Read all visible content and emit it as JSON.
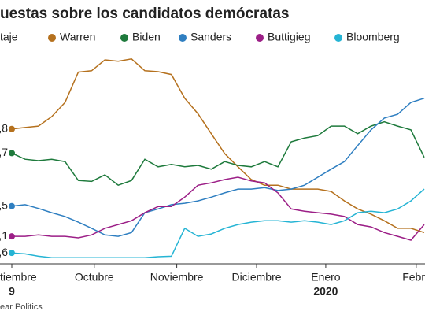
{
  "chart_data": {
    "type": "line",
    "title": "uestas sobre los candidatos demócratas",
    "legend_title": "taje",
    "source": "ear Politics",
    "year_labels": [
      "9",
      "2020"
    ],
    "x": [
      0,
      5,
      10,
      15,
      20,
      25,
      30,
      35,
      40,
      45,
      50,
      55,
      60,
      65,
      70,
      75,
      80,
      85,
      90,
      95,
      100,
      105,
      110,
      115,
      120,
      125,
      130,
      135,
      140,
      145,
      150,
      155
    ],
    "xlim": [
      0,
      155
    ],
    "xticks": [
      {
        "value": 0,
        "label": "tiembre"
      },
      {
        "value": 31,
        "label": "Octubre"
      },
      {
        "value": 62,
        "label": "Noviembre"
      },
      {
        "value": 92,
        "label": "Diciembre"
      },
      {
        "value": 118,
        "label": "Enero"
      },
      {
        "value": 152,
        "label": "Febr"
      }
    ],
    "ylim": [
      -1.7,
      42.4
    ],
    "series": [
      {
        "name": "Warren",
        "color": "#b5711e",
        "start_label": ",8",
        "values": [
          26.8,
          27.1,
          27.4,
          29.4,
          32.4,
          38.8,
          39.1,
          41.4,
          41.1,
          41.6,
          39.1,
          38.9,
          38.3,
          33.3,
          30.0,
          25.8,
          21.6,
          18.8,
          16.1,
          14.9,
          14.9,
          14.1,
          14.1,
          14.1,
          13.6,
          11.6,
          9.9,
          8.8,
          7.4,
          5.8,
          5.8,
          4.9
        ]
      },
      {
        "name": "Biden",
        "color": "#1e7a3c",
        "start_label": ",7",
        "values": [
          21.7,
          20.4,
          20.1,
          20.4,
          19.9,
          15.9,
          15.7,
          17.1,
          14.9,
          15.9,
          20.4,
          18.8,
          19.3,
          18.8,
          19.1,
          18.3,
          19.9,
          19.1,
          18.8,
          19.9,
          18.8,
          24.1,
          24.9,
          25.4,
          27.4,
          27.4,
          25.8,
          27.4,
          28.3,
          27.4,
          26.6,
          20.8
        ]
      },
      {
        "name": "Sanders",
        "color": "#2f7fc1",
        "start_label": ",5",
        "values": [
          10.5,
          10.8,
          10.0,
          9.1,
          8.3,
          7.1,
          5.8,
          4.4,
          4.1,
          4.9,
          9.1,
          9.9,
          10.8,
          11.1,
          11.6,
          12.4,
          13.3,
          14.1,
          14.1,
          14.4,
          13.8,
          14.1,
          14.9,
          16.6,
          18.3,
          19.9,
          23.3,
          26.6,
          29.1,
          29.9,
          32.4,
          33.3
        ]
      },
      {
        "name": "Buttigieg",
        "color": "#9c1f87",
        "start_label": ",1",
        "values": [
          4.1,
          4.1,
          4.4,
          4.1,
          4.1,
          3.8,
          4.4,
          5.8,
          6.6,
          7.4,
          9.1,
          10.4,
          10.4,
          12.4,
          14.9,
          15.4,
          16.1,
          16.6,
          15.8,
          15.4,
          13.3,
          9.9,
          9.4,
          9.1,
          8.8,
          8.3,
          6.6,
          6.1,
          4.9,
          4.1,
          3.3,
          6.6
        ]
      },
      {
        "name": "Bloomberg",
        "color": "#25b4d4",
        "start_label": ",6",
        "values": [
          0.6,
          0.4,
          -0.1,
          -0.4,
          -0.4,
          -0.4,
          -0.4,
          -0.4,
          -0.4,
          -0.4,
          -0.4,
          -0.2,
          -0.1,
          5.8,
          4.1,
          4.6,
          5.8,
          6.6,
          7.1,
          7.4,
          7.4,
          7.1,
          7.4,
          7.1,
          6.6,
          7.4,
          9.1,
          9.4,
          9.1,
          9.9,
          11.6,
          14.1
        ]
      }
    ]
  }
}
